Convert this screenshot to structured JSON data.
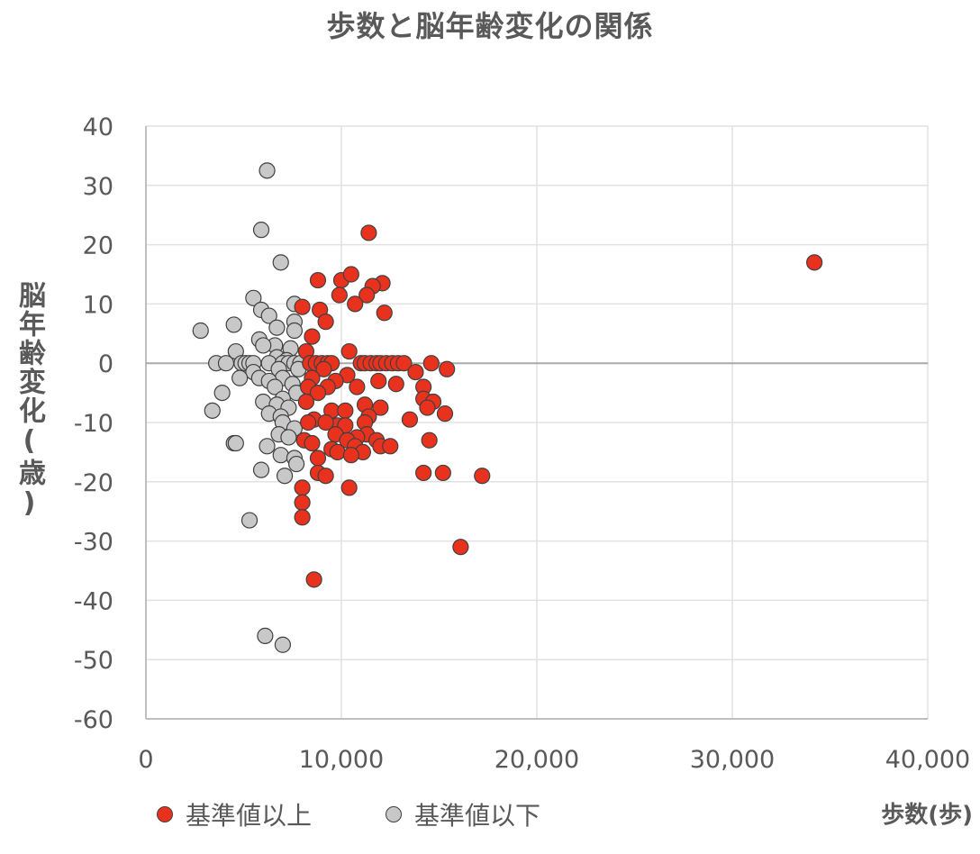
{
  "chart_data": {
    "type": "scatter",
    "title": "歩数と脳年齢変化の関係",
    "xlabel": "歩数(歩)",
    "ylabel": "脳年齢変化(歳)",
    "xlim": [
      0,
      40000
    ],
    "ylim": [
      -60,
      40
    ],
    "x_ticks": [
      "0",
      "10,000",
      "20,000",
      "30,000",
      "40,000"
    ],
    "y_ticks": [
      "40",
      "30",
      "20",
      "10",
      "0",
      "-10",
      "-20",
      "-30",
      "-40",
      "-50",
      "-60"
    ],
    "grid": true,
    "legend_position": "bottom-left",
    "series": [
      {
        "name": "基準値以上",
        "color": "#e8321e",
        "points": [
          [
            34200,
            17
          ],
          [
            11400,
            22
          ],
          [
            8800,
            14
          ],
          [
            10000,
            14
          ],
          [
            10500,
            15
          ],
          [
            12100,
            13.5
          ],
          [
            11600,
            13
          ],
          [
            11300,
            11.5
          ],
          [
            9900,
            11.5
          ],
          [
            10700,
            10
          ],
          [
            8000,
            9.5
          ],
          [
            8900,
            9
          ],
          [
            12200,
            8.5
          ],
          [
            9200,
            7
          ],
          [
            8500,
            4.5
          ],
          [
            8200,
            2
          ],
          [
            10400,
            2
          ],
          [
            8400,
            0
          ],
          [
            8700,
            0
          ],
          [
            9000,
            0
          ],
          [
            9300,
            0
          ],
          [
            9500,
            0
          ],
          [
            11000,
            0
          ],
          [
            11200,
            0
          ],
          [
            11500,
            0
          ],
          [
            11800,
            0
          ],
          [
            12000,
            0
          ],
          [
            12300,
            0
          ],
          [
            12600,
            0
          ],
          [
            12900,
            0
          ],
          [
            13200,
            0
          ],
          [
            14600,
            0
          ],
          [
            13800,
            -1.5
          ],
          [
            15400,
            -1
          ],
          [
            9100,
            -1
          ],
          [
            10300,
            -2
          ],
          [
            8500,
            -2.5
          ],
          [
            9700,
            -3
          ],
          [
            11900,
            -3
          ],
          [
            12800,
            -3.5
          ],
          [
            8300,
            -4
          ],
          [
            9300,
            -4
          ],
          [
            10800,
            -4
          ],
          [
            14200,
            -4
          ],
          [
            8800,
            -5
          ],
          [
            14200,
            -6
          ],
          [
            14700,
            -6.5
          ],
          [
            8200,
            -6.5
          ],
          [
            14400,
            -7.5
          ],
          [
            11200,
            -7
          ],
          [
            12000,
            -7.5
          ],
          [
            9500,
            -8
          ],
          [
            10200,
            -8
          ],
          [
            15300,
            -8.5
          ],
          [
            11400,
            -9
          ],
          [
            8600,
            -9.5
          ],
          [
            11200,
            -10
          ],
          [
            8300,
            -10
          ],
          [
            9800,
            -10.5
          ],
          [
            10200,
            -10.5
          ],
          [
            13500,
            -9.5
          ],
          [
            9200,
            -10
          ],
          [
            9700,
            -12
          ],
          [
            11300,
            -12
          ],
          [
            10800,
            -12.5
          ],
          [
            11800,
            -13
          ],
          [
            14500,
            -13
          ],
          [
            8100,
            -13
          ],
          [
            8500,
            -13.5
          ],
          [
            10300,
            -13
          ],
          [
            10700,
            -14
          ],
          [
            12000,
            -14
          ],
          [
            12500,
            -14
          ],
          [
            9500,
            -14.5
          ],
          [
            9800,
            -15
          ],
          [
            11100,
            -15
          ],
          [
            10500,
            -15.5
          ],
          [
            8800,
            -16
          ],
          [
            8800,
            -18.5
          ],
          [
            9200,
            -19
          ],
          [
            14200,
            -18.5
          ],
          [
            15200,
            -18.5
          ],
          [
            17200,
            -19
          ],
          [
            10400,
            -21
          ],
          [
            8000,
            -21
          ],
          [
            8000,
            -23.5
          ],
          [
            8000,
            -26
          ],
          [
            16100,
            -31
          ],
          [
            8600,
            -36.5
          ]
        ]
      },
      {
        "name": "基準値以下",
        "color": "#c8c8c8",
        "points": [
          [
            6200,
            32.5
          ],
          [
            5900,
            22.5
          ],
          [
            6900,
            17
          ],
          [
            5500,
            11
          ],
          [
            7600,
            10
          ],
          [
            5900,
            9
          ],
          [
            6300,
            8
          ],
          [
            7600,
            7
          ],
          [
            4500,
            6.5
          ],
          [
            6700,
            6
          ],
          [
            2800,
            5.5
          ],
          [
            7600,
            5.5
          ],
          [
            5800,
            4
          ],
          [
            6600,
            3
          ],
          [
            6000,
            3
          ],
          [
            7400,
            2.5
          ],
          [
            4600,
            2
          ],
          [
            6700,
            1
          ],
          [
            7200,
            0.5
          ],
          [
            3600,
            0
          ],
          [
            4100,
            0
          ],
          [
            4900,
            0
          ],
          [
            5100,
            0
          ],
          [
            5300,
            0
          ],
          [
            5500,
            0
          ],
          [
            6300,
            0
          ],
          [
            7000,
            0
          ],
          [
            7300,
            0
          ],
          [
            7600,
            0
          ],
          [
            7900,
            0
          ],
          [
            6800,
            -1
          ],
          [
            7800,
            -1
          ],
          [
            5500,
            -1.5
          ],
          [
            4800,
            -2.5
          ],
          [
            5800,
            -2.5
          ],
          [
            7000,
            -2.5
          ],
          [
            6300,
            -3
          ],
          [
            7500,
            -3.5
          ],
          [
            6600,
            -4
          ],
          [
            7700,
            -5
          ],
          [
            3900,
            -5
          ],
          [
            7000,
            -6
          ],
          [
            6000,
            -6.5
          ],
          [
            6700,
            -7
          ],
          [
            7300,
            -7.5
          ],
          [
            3400,
            -8
          ],
          [
            6300,
            -8.5
          ],
          [
            6900,
            -9
          ],
          [
            7000,
            -10
          ],
          [
            7600,
            -11
          ],
          [
            6800,
            -12
          ],
          [
            7300,
            -12.5
          ],
          [
            4500,
            -13.5
          ],
          [
            4600,
            -13.5
          ],
          [
            6200,
            -14
          ],
          [
            6900,
            -15.5
          ],
          [
            7600,
            -16
          ],
          [
            7700,
            -17
          ],
          [
            5900,
            -18
          ],
          [
            7100,
            -19
          ],
          [
            5300,
            -26.5
          ],
          [
            6100,
            -46
          ],
          [
            7000,
            -47.5
          ]
        ]
      }
    ]
  }
}
